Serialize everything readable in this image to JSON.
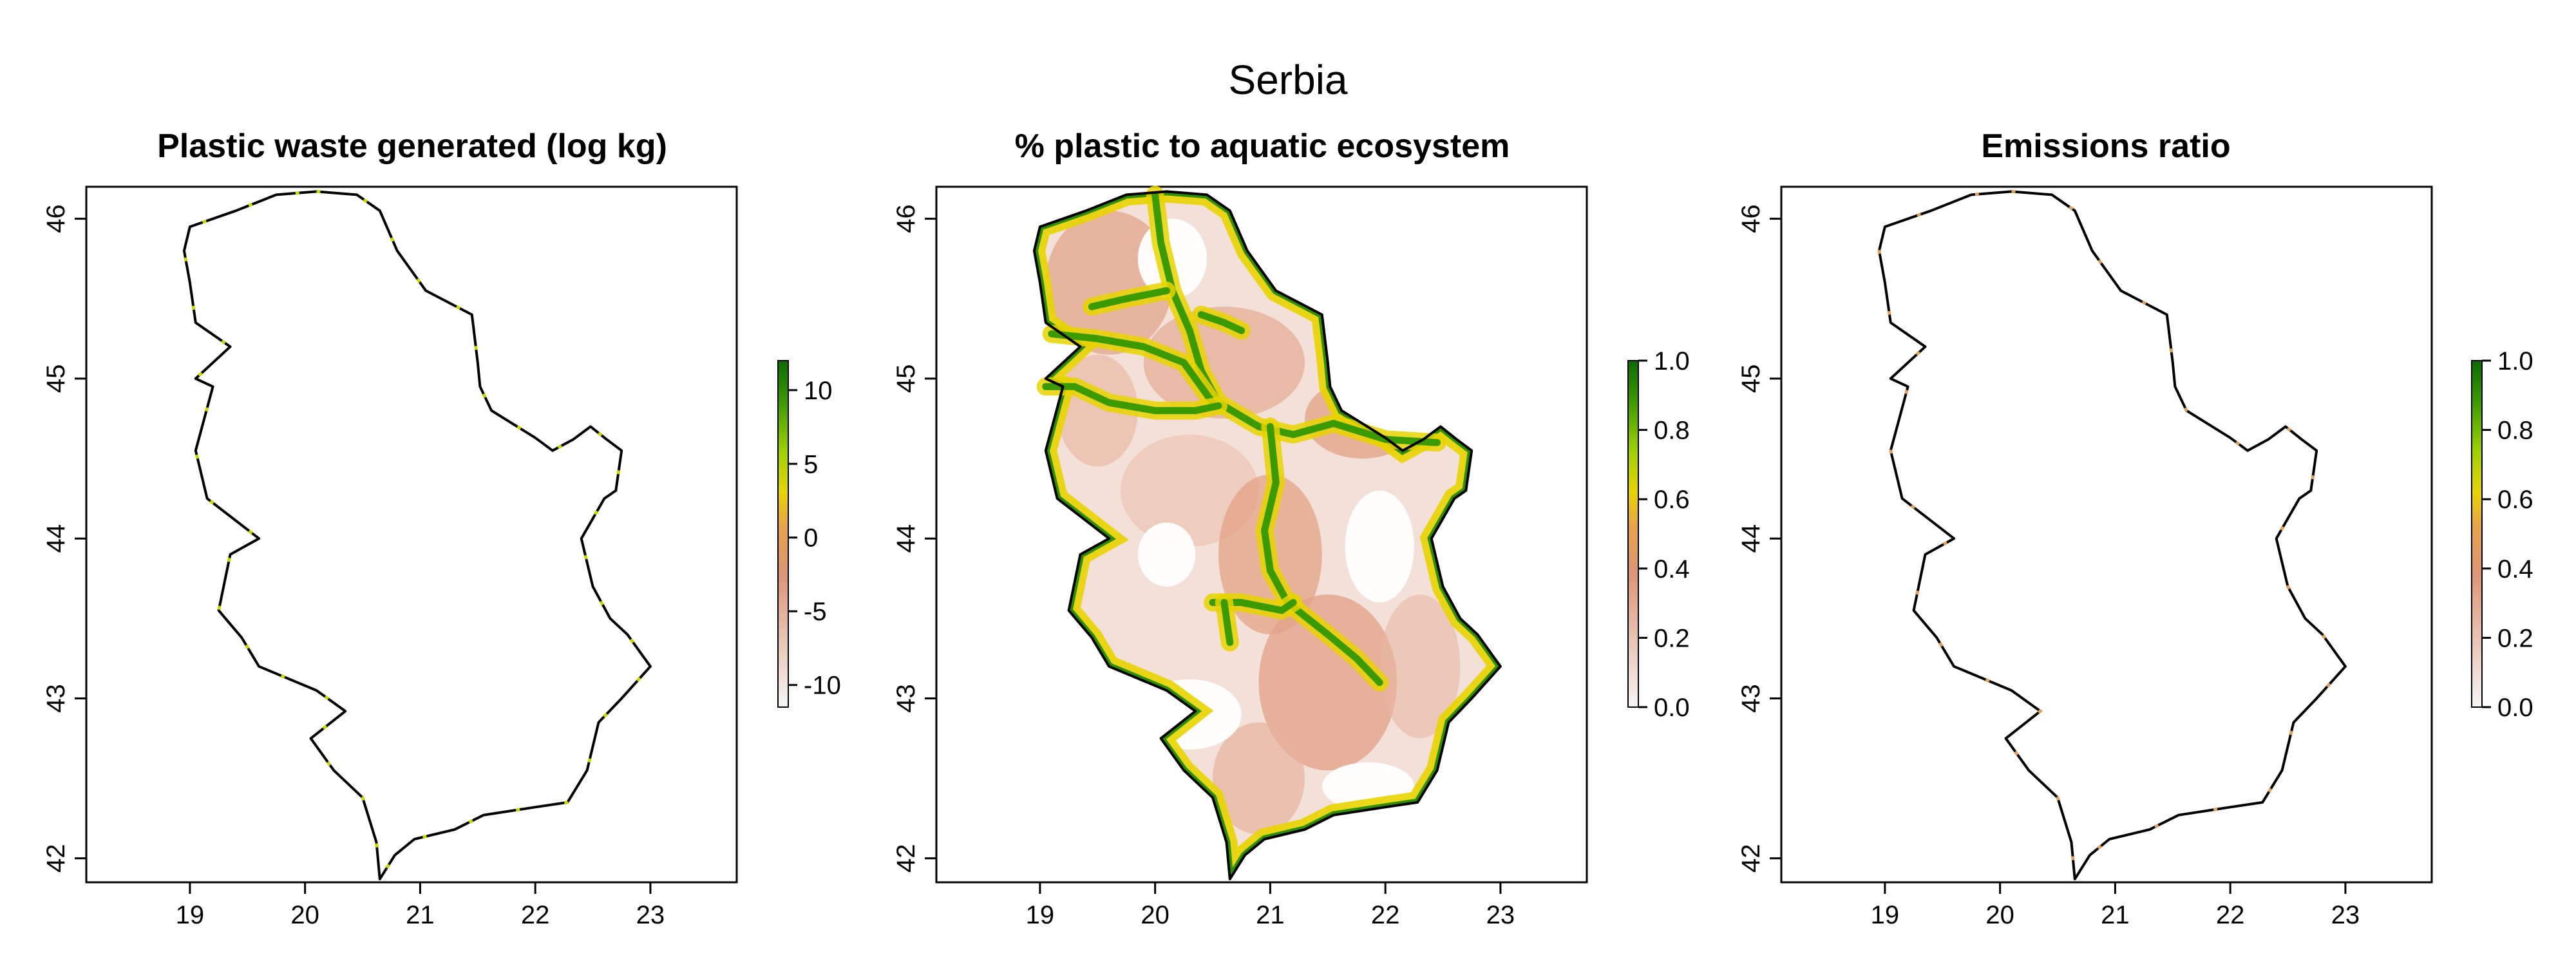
{
  "figure": {
    "title": "Serbia"
  },
  "panels": [
    {
      "title": "Plastic waste generated (log kg)",
      "x_ticks": [
        "19",
        "20",
        "21",
        "22",
        "23"
      ],
      "y_ticks": [
        "42",
        "43",
        "44",
        "45",
        "46"
      ],
      "legend": {
        "ticks": [
          "10",
          "5",
          "0",
          "-5",
          "-10"
        ],
        "range": [
          -11.5,
          12
        ]
      }
    },
    {
      "title": "% plastic to aquatic ecosystem",
      "x_ticks": [
        "19",
        "20",
        "21",
        "22",
        "23"
      ],
      "y_ticks": [
        "42",
        "43",
        "44",
        "45",
        "46"
      ],
      "legend": {
        "ticks": [
          "1.0",
          "0.8",
          "0.6",
          "0.4",
          "0.2",
          "0.0"
        ],
        "range": [
          0,
          1
        ]
      }
    },
    {
      "title": "Emissions ratio",
      "x_ticks": [
        "19",
        "20",
        "21",
        "22",
        "23"
      ],
      "y_ticks": [
        "42",
        "43",
        "44",
        "45",
        "46"
      ],
      "legend": {
        "ticks": [
          "1.0",
          "0.8",
          "0.6",
          "0.4",
          "0.2",
          "0.0"
        ],
        "range": [
          0,
          1
        ]
      }
    }
  ],
  "map_extent": {
    "lon": [
      18.1,
      23.75
    ],
    "lat": [
      41.85,
      46.2
    ]
  },
  "colors": {
    "border": "#000000",
    "ramp": [
      "#f6f6f6",
      "#e9c2b2",
      "#dd9677",
      "#e8a24a",
      "#e8d400",
      "#9ed000",
      "#3d9a00",
      "#0a6b00"
    ]
  }
}
